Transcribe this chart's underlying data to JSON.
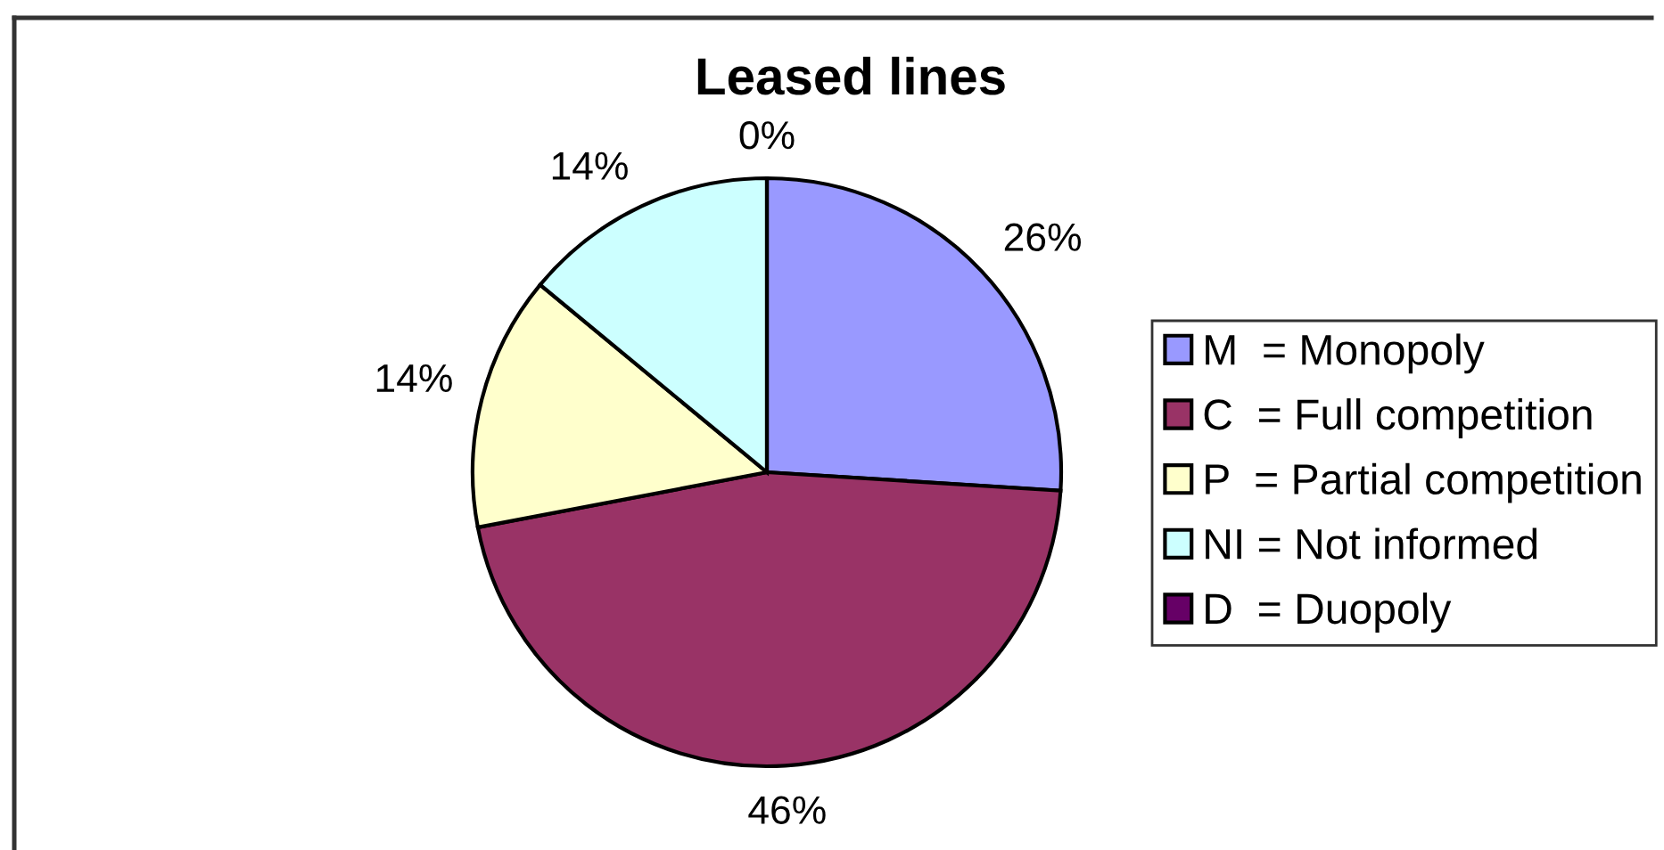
{
  "chart_data": {
    "type": "pie",
    "title": "Leased lines",
    "categories": [
      "M  = Monopoly",
      "C  = Full competition",
      "P  = Partial competition",
      "NI = Not informed",
      "D  = Duopoly"
    ],
    "values": [
      26,
      46,
      14,
      14,
      0
    ],
    "colors": [
      "#9999ff",
      "#993366",
      "#ffffcc",
      "#ccffff",
      "#660066"
    ],
    "value_labels": [
      "26%",
      "46%",
      "14%",
      "14%",
      "0%"
    ],
    "legend": "right"
  }
}
